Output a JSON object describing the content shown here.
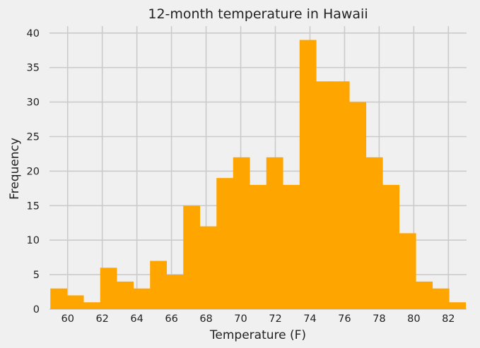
{
  "chart_data": {
    "type": "bar",
    "title": "12-month temperature in Hawaii",
    "xlabel": "Temperature (F)",
    "ylabel": "Frequency",
    "bin_start": 59.0,
    "bin_end": 83.0,
    "values": [
      3,
      2,
      1,
      6,
      4,
      3,
      7,
      5,
      15,
      12,
      19,
      22,
      18,
      22,
      18,
      39,
      33,
      33,
      30,
      22,
      18,
      11,
      4,
      3,
      1
    ],
    "xlim": [
      58.95,
      83.05
    ],
    "ylim": [
      0,
      41
    ],
    "xticks": [
      60,
      62,
      64,
      66,
      68,
      70,
      72,
      74,
      76,
      78,
      80,
      82
    ],
    "yticks": [
      0,
      5,
      10,
      15,
      20,
      25,
      30,
      35,
      40
    ],
    "grid": true,
    "bar_color": "#ffa500",
    "background_color": "#f0f0f0",
    "grid_color": "#cbcbcb"
  }
}
